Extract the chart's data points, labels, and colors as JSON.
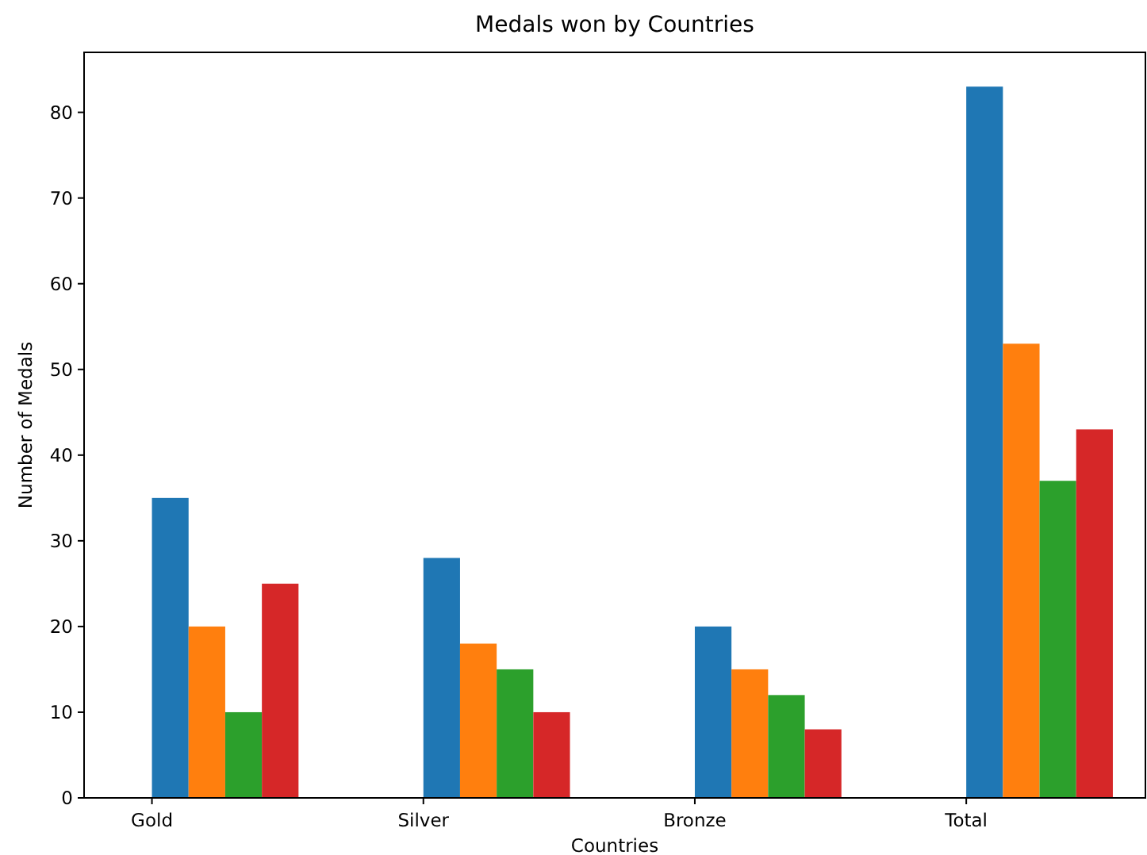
{
  "chart_data": {
    "type": "bar",
    "title": "Medals won by Countries",
    "xlabel": "Countries",
    "ylabel": "Number of Medals",
    "categories": [
      "Gold",
      "Silver",
      "Bronze",
      "Total"
    ],
    "series": [
      {
        "color": "#1f77b4",
        "values": [
          35,
          28,
          20,
          83
        ]
      },
      {
        "color": "#ff7f0e",
        "values": [
          20,
          18,
          15,
          53
        ]
      },
      {
        "color": "#2ca02c",
        "values": [
          10,
          15,
          12,
          37
        ]
      },
      {
        "color": "#d62728",
        "values": [
          25,
          10,
          8,
          43
        ]
      }
    ],
    "ylim": [
      0,
      87
    ],
    "yticks": [
      0,
      10,
      20,
      30,
      40,
      50,
      60,
      70,
      80
    ],
    "grid": false
  }
}
